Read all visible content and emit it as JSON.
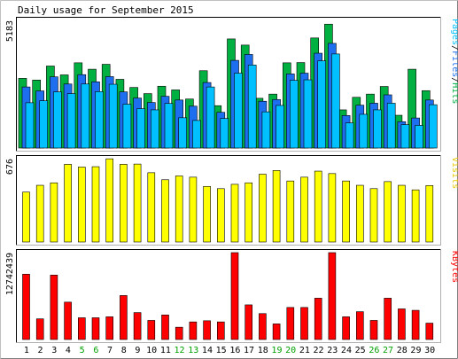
{
  "title": "Daily usage for September 2015",
  "colors": {
    "background": "#ffffff",
    "panel_bg": "#ffffff",
    "frame_light": "#d8d8d8",
    "frame_dark": "#808080",
    "hits": "#00b040",
    "files": "#1e6ff0",
    "pages": "#00c0ff",
    "visits": "#ffff00",
    "kbytes": "#ff0000",
    "weekend_label": "#00a000",
    "weekday_label": "#000000",
    "bar_outline": "#000000"
  },
  "chart_data": [
    {
      "type": "bar",
      "title": "Daily usage for September 2015",
      "panel": "hits-files-pages",
      "legend_position": "right",
      "ymax_label": "5183",
      "ylim": [
        0,
        5183
      ],
      "categories": [
        "1",
        "2",
        "3",
        "4",
        "5",
        "6",
        "7",
        "8",
        "9",
        "10",
        "11",
        "12",
        "13",
        "14",
        "15",
        "16",
        "17",
        "18",
        "19",
        "20",
        "21",
        "22",
        "23",
        "24",
        "25",
        "26",
        "27",
        "28",
        "29",
        "30"
      ],
      "weekend_days": [
        "5",
        "6",
        "12",
        "13",
        "19",
        "20",
        "26",
        "27"
      ],
      "series": [
        {
          "name": "Hits",
          "values": [
            2830,
            2760,
            3330,
            2970,
            3460,
            3200,
            3400,
            2790,
            2460,
            2210,
            2510,
            2360,
            1990,
            3140,
            1720,
            4430,
            4180,
            2020,
            2190,
            3460,
            3470,
            4470,
            5030,
            1550,
            2060,
            2190,
            2500,
            1330,
            3200,
            2330
          ]
        },
        {
          "name": "Files",
          "values": [
            2480,
            2320,
            2890,
            2600,
            2980,
            2690,
            2900,
            2280,
            2030,
            1850,
            2100,
            1950,
            1700,
            2660,
            1450,
            3560,
            3800,
            1900,
            1970,
            3010,
            3040,
            3850,
            4250,
            1320,
            1740,
            1820,
            2160,
            1070,
            1220,
            1950
          ]
        },
        {
          "name": "Pages",
          "values": [
            1840,
            1920,
            2280,
            2210,
            2600,
            2290,
            2590,
            1780,
            1600,
            1550,
            1810,
            1230,
            1120,
            2480,
            1200,
            3040,
            3370,
            1470,
            1730,
            2750,
            2770,
            3540,
            3820,
            1020,
            1370,
            1550,
            1820,
            950,
            920,
            1760
          ]
        }
      ]
    },
    {
      "type": "bar",
      "panel": "visits",
      "legend_position": "right",
      "ymax_label": "676",
      "ylim": [
        0,
        676
      ],
      "categories": [
        "1",
        "2",
        "3",
        "4",
        "5",
        "6",
        "7",
        "8",
        "9",
        "10",
        "11",
        "12",
        "13",
        "14",
        "15",
        "16",
        "17",
        "18",
        "19",
        "20",
        "21",
        "22",
        "23",
        "24",
        "25",
        "26",
        "27",
        "28",
        "29",
        "30"
      ],
      "series": [
        {
          "name": "Visits",
          "values": [
            405,
            460,
            480,
            630,
            608,
            611,
            675,
            630,
            632,
            562,
            505,
            536,
            526,
            451,
            433,
            468,
            480,
            550,
            580,
            495,
            526,
            575,
            555,
            495,
            460,
            433,
            490,
            460,
            423,
            458
          ]
        }
      ]
    },
    {
      "type": "bar",
      "panel": "kbytes",
      "legend_position": "right",
      "ymax_label": "12742439",
      "ylim": [
        0,
        12742439
      ],
      "categories": [
        "1",
        "2",
        "3",
        "4",
        "5",
        "6",
        "7",
        "8",
        "9",
        "10",
        "11",
        "12",
        "13",
        "14",
        "15",
        "16",
        "17",
        "18",
        "19",
        "20",
        "21",
        "22",
        "23",
        "24",
        "25",
        "26",
        "27",
        "28",
        "29",
        "30"
      ],
      "series": [
        {
          "name": "KBytes",
          "values": [
            9580000,
            3030000,
            9450000,
            5480000,
            3190000,
            3190000,
            3330000,
            6450000,
            3950000,
            2800000,
            3600000,
            1800000,
            2580000,
            2750000,
            2580000,
            12742439,
            5080000,
            3800000,
            2290000,
            4700000,
            4700000,
            6060000,
            12742439,
            3330000,
            4080000,
            2800000,
            6060000,
            4490000,
            4280000,
            2400000
          ]
        }
      ]
    }
  ]
}
